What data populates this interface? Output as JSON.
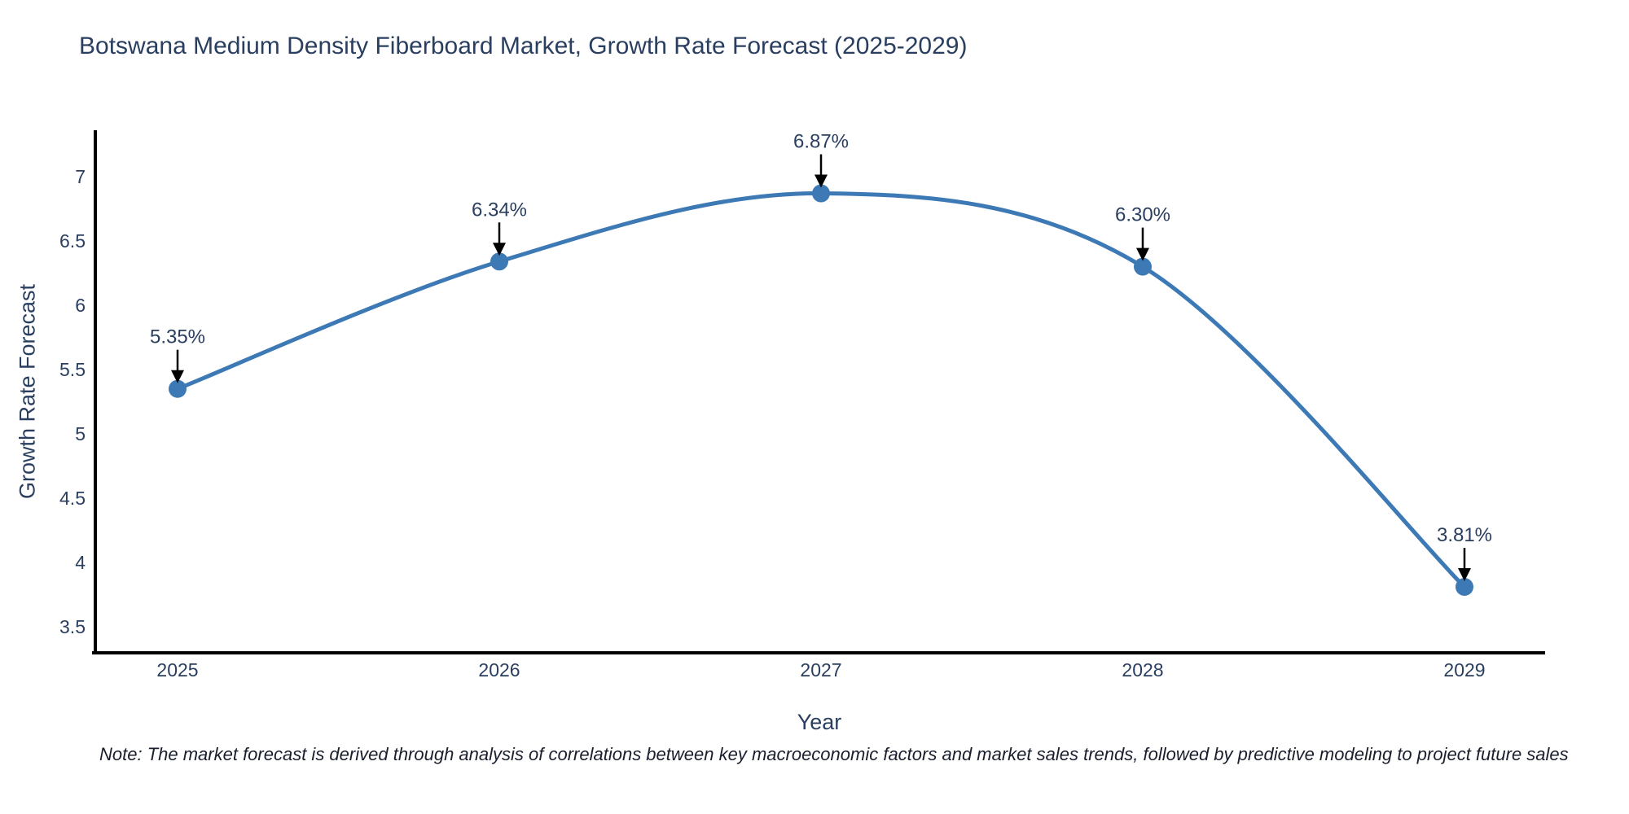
{
  "title": "Botswana Medium Density Fiberboard Market, Growth Rate Forecast (2025-2029)",
  "note": "Note: The market forecast is derived through analysis of correlations between key macroeconomic factors and market sales trends, followed by predictive modeling to project future sales",
  "chart_data": {
    "type": "line",
    "title": "Botswana Medium Density Fiberboard Market, Growth Rate Forecast (2025-2029)",
    "xlabel": "Year",
    "ylabel": "Growth Rate Forecast",
    "x": [
      2025,
      2026,
      2027,
      2028,
      2029
    ],
    "categories": [
      "2025",
      "2026",
      "2027",
      "2028",
      "2029"
    ],
    "values": [
      5.35,
      6.34,
      6.87,
      6.3,
      3.81
    ],
    "point_labels": [
      "5.35%",
      "6.34%",
      "6.87%",
      "6.30%",
      "3.81%"
    ],
    "yticks": [
      3.5,
      4,
      4.5,
      5,
      5.5,
      6,
      6.5,
      7
    ],
    "ylim": [
      3.31,
      7.42
    ],
    "grid": false,
    "legend": "none",
    "line_shape": "spline",
    "colors": {
      "line": "#3d7ab5",
      "marker": "#3d7ab5",
      "axis_line": "#000000",
      "tick_label": "#2a3f5f",
      "annotation_text": "#2a3f5f",
      "annotation_arrow": "#000000",
      "title": "#2a3f5f",
      "background": "#ffffff"
    }
  }
}
